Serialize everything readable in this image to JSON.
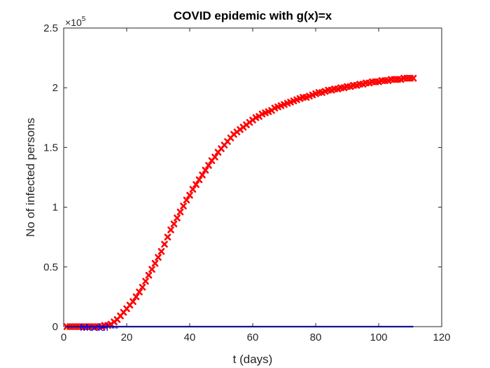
{
  "chart_data": {
    "type": "line",
    "title": "COVID epidemic with g(x)=x",
    "xlabel": "t (days)",
    "ylabel": "No of infected persons",
    "xlim": [
      0,
      120
    ],
    "ylim": [
      0,
      2.5
    ],
    "xticks": [
      "0",
      "20",
      "40",
      "60",
      "80",
      "100",
      "120"
    ],
    "yticks": [
      "0",
      "0.5",
      "1",
      "1.5",
      "2",
      "2.5"
    ],
    "y_multiplier": {
      "times": "×10",
      "exponent": "5"
    },
    "grid": false,
    "legend_text": "Model --",
    "series": [
      {
        "name": "",
        "color": "#ff0000",
        "marker": "x",
        "x": [
          1,
          2,
          3,
          4,
          5,
          6,
          7,
          8,
          9,
          10,
          11,
          12,
          13,
          14,
          15,
          16,
          17,
          18,
          19,
          20,
          21,
          22,
          23,
          24,
          25,
          26,
          27,
          28,
          29,
          30,
          31,
          32,
          33,
          34,
          35,
          36,
          37,
          38,
          39,
          40,
          41,
          42,
          43,
          44,
          45,
          46,
          47,
          48,
          49,
          50,
          51,
          52,
          53,
          54,
          55,
          56,
          57,
          58,
          59,
          60,
          61,
          62,
          63,
          64,
          65,
          66,
          67,
          68,
          69,
          70,
          71,
          72,
          73,
          74,
          75,
          76,
          77,
          78,
          79,
          80,
          81,
          82,
          83,
          84,
          85,
          86,
          87,
          88,
          89,
          90,
          91,
          92,
          93,
          94,
          95,
          96,
          97,
          98,
          99,
          100,
          101,
          102,
          103,
          104,
          105,
          106,
          107,
          108,
          109,
          110,
          111
        ],
        "y": [
          0.0,
          0.0,
          0.0,
          0.0,
          0.0,
          0.0,
          0.0,
          0.0,
          0.0,
          0.0,
          0.0,
          0.0,
          0.01,
          0.01,
          0.02,
          0.04,
          0.06,
          0.09,
          0.12,
          0.15,
          0.18,
          0.21,
          0.25,
          0.29,
          0.33,
          0.38,
          0.43,
          0.48,
          0.53,
          0.58,
          0.63,
          0.69,
          0.75,
          0.81,
          0.86,
          0.91,
          0.96,
          1.01,
          1.06,
          1.1,
          1.15,
          1.19,
          1.23,
          1.27,
          1.31,
          1.35,
          1.39,
          1.42,
          1.46,
          1.49,
          1.52,
          1.55,
          1.58,
          1.61,
          1.63,
          1.65,
          1.67,
          1.69,
          1.71,
          1.73,
          1.75,
          1.76,
          1.78,
          1.79,
          1.8,
          1.81,
          1.83,
          1.84,
          1.85,
          1.86,
          1.87,
          1.88,
          1.89,
          1.9,
          1.91,
          1.92,
          1.92,
          1.93,
          1.94,
          1.95,
          1.96,
          1.96,
          1.97,
          1.98,
          1.98,
          1.99,
          1.99,
          2.0,
          2.0,
          2.01,
          2.01,
          2.02,
          2.02,
          2.03,
          2.03,
          2.04,
          2.04,
          2.05,
          2.05,
          2.05,
          2.06,
          2.06,
          2.06,
          2.07,
          2.07,
          2.07,
          2.07,
          2.08,
          2.08,
          2.08,
          2.08
        ]
      },
      {
        "name": "",
        "color": "#0000ff",
        "marker": "none",
        "x": [
          1,
          111
        ],
        "y": [
          0,
          0
        ]
      }
    ]
  }
}
